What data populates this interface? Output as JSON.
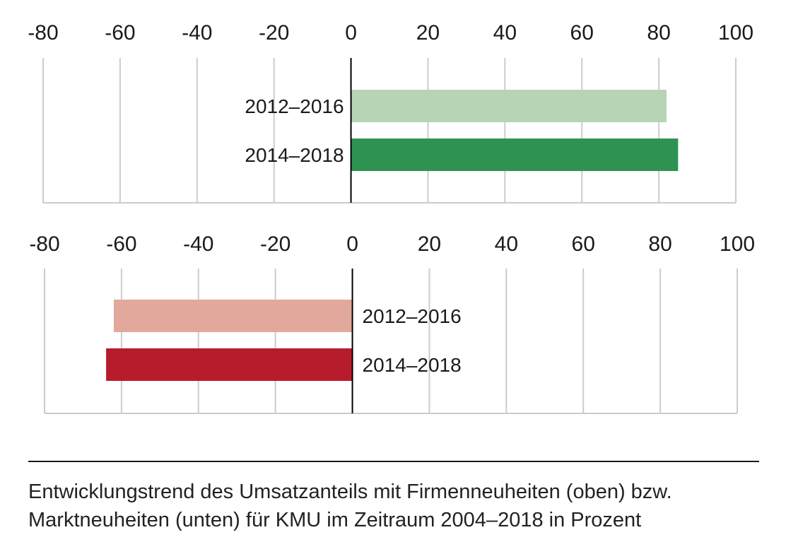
{
  "chart_data": [
    {
      "type": "bar",
      "orientation": "horizontal",
      "panel": "oben",
      "categories": [
        "2012–2016",
        "2014–2018"
      ],
      "values": [
        82,
        85
      ],
      "colors": [
        "#b7d5b5",
        "#2e9352"
      ],
      "xlim": [
        -80,
        100
      ],
      "xticks": [
        "-80",
        "-60",
        "-40",
        "-20",
        "0",
        "20",
        "40",
        "60",
        "80",
        "100"
      ],
      "grid": true
    },
    {
      "type": "bar",
      "orientation": "horizontal",
      "panel": "unten",
      "categories": [
        "2012–2016",
        "2014–2018"
      ],
      "values": [
        -62,
        -64
      ],
      "colors": [
        "#e1a89b",
        "#b71c2d"
      ],
      "xlim": [
        -80,
        100
      ],
      "xticks": [
        "-80",
        "-60",
        "-40",
        "-20",
        "0",
        "20",
        "40",
        "60",
        "80",
        "100"
      ],
      "grid": true
    }
  ],
  "caption": {
    "line1": "Entwicklungstrend des Umsatzanteils mit Firmenneuheiten (oben) bzw.",
    "line2": "Marktneuheiten (unten) für KMU im Zeitraum 2004–2018 in Prozent"
  },
  "colors": {
    "grid": "#cccccc",
    "axis": "#000000",
    "text": "#1a1a1a"
  }
}
